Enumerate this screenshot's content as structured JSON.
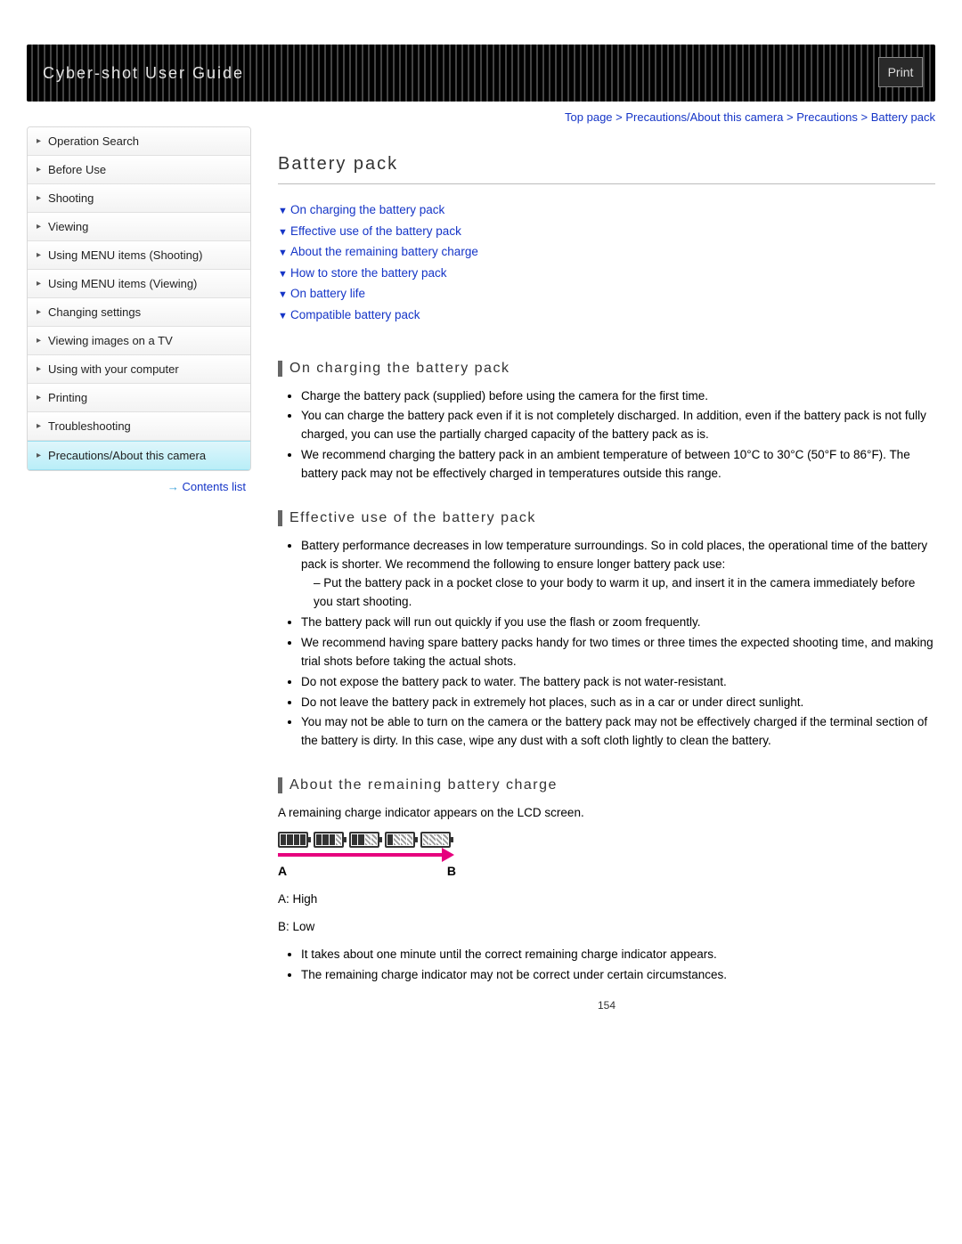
{
  "header": {
    "title": "Cyber-shot User Guide",
    "print_label": "Print"
  },
  "breadcrumb": {
    "items": [
      "Top page",
      "Precautions/About this camera",
      "Precautions",
      "Battery pack"
    ],
    "sep": " > "
  },
  "sidebar": {
    "items": [
      {
        "label": "Operation Search",
        "active": false
      },
      {
        "label": "Before Use",
        "active": false
      },
      {
        "label": "Shooting",
        "active": false
      },
      {
        "label": "Viewing",
        "active": false
      },
      {
        "label": "Using MENU items (Shooting)",
        "active": false
      },
      {
        "label": "Using MENU items (Viewing)",
        "active": false
      },
      {
        "label": "Changing settings",
        "active": false
      },
      {
        "label": "Viewing images on a TV",
        "active": false
      },
      {
        "label": "Using with your computer",
        "active": false
      },
      {
        "label": "Printing",
        "active": false
      },
      {
        "label": "Troubleshooting",
        "active": false
      },
      {
        "label": "Precautions/About this camera",
        "active": true
      }
    ],
    "contents_list_label": "Contents list"
  },
  "page": {
    "title": "Battery pack",
    "anchors": [
      "On charging the battery pack",
      "Effective use of the battery pack",
      "About the remaining battery charge",
      "How to store the battery pack",
      "On battery life",
      "Compatible battery pack"
    ],
    "sections": {
      "s1": {
        "heading": "On charging the battery pack",
        "bullets": [
          "Charge the battery pack (supplied) before using the camera for the first time.",
          "You can charge the battery pack even if it is not completely discharged. In addition, even if the battery pack is not fully charged, you can use the partially charged capacity of the battery pack as is.",
          "We recommend charging the battery pack in an ambient temperature of between 10°C to 30°C (50°F to 86°F). The battery pack may not be effectively charged in temperatures outside this range."
        ]
      },
      "s2": {
        "heading": "Effective use of the battery pack",
        "bullets": [
          {
            "text": "Battery performance decreases in low temperature surroundings. So in cold places, the operational time of the battery pack is shorter. We recommend the following to ensure longer battery pack use:",
            "sub": [
              "Put the battery pack in a pocket close to your body to warm it up, and insert it in the camera immediately before you start shooting."
            ]
          },
          {
            "text": "The battery pack will run out quickly if you use the flash or zoom frequently."
          },
          {
            "text": "We recommend having spare battery packs handy for two times or three times the expected shooting time, and making trial shots before taking the actual shots."
          },
          {
            "text": "Do not expose the battery pack to water. The battery pack is not water-resistant."
          },
          {
            "text": "Do not leave the battery pack in extremely hot places, such as in a car or under direct sunlight."
          },
          {
            "text": "You may not be able to turn on the camera or the battery pack may not be effectively charged if the terminal section of the battery is dirty. In this case, wipe any dust with a soft cloth lightly to clean the battery."
          }
        ]
      },
      "s3": {
        "heading": "About the remaining battery charge",
        "intro": "A remaining charge indicator appears on the LCD screen.",
        "diagram": {
          "levels": [
            4,
            3,
            2,
            1,
            0
          ],
          "arrow_color": "#e6007e",
          "labels": {
            "a": "A",
            "b": "B",
            "a_desc": "A: High",
            "b_desc": "B: Low"
          }
        },
        "bullets": [
          "It takes about one minute until the correct remaining charge indicator appears.",
          "The remaining charge indicator may not be correct under certain circumstances."
        ]
      }
    },
    "page_number": "154"
  },
  "colors": {
    "link": "#1535c7",
    "accent_border": "#666666",
    "arrow": "#e6007e"
  }
}
